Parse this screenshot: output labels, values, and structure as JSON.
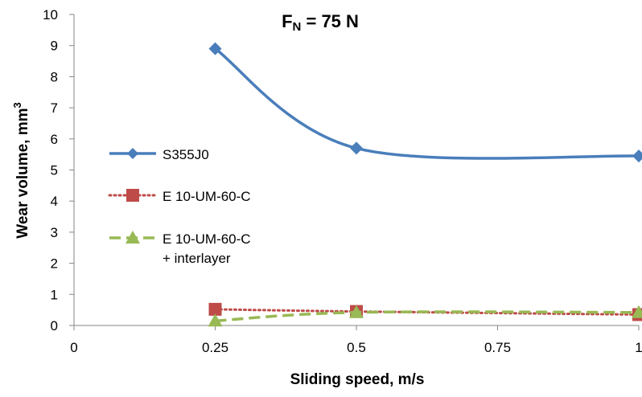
{
  "chart_data": {
    "type": "line",
    "title_main": "F",
    "title_sub": "N",
    "title_rest": " = 75 N",
    "xlabel": "Sliding speed, m/s",
    "ylabel": "Wear volume, mm",
    "ylabel_sup": "3",
    "xlim": [
      0,
      1
    ],
    "ylim": [
      0,
      10
    ],
    "xticks": [
      0,
      0.25,
      0.5,
      0.75,
      1
    ],
    "xtick_labels": [
      "0",
      "0.25",
      "0.5",
      "0.75",
      "1"
    ],
    "yticks": [
      0,
      1,
      2,
      3,
      4,
      5,
      6,
      7,
      8,
      9,
      10
    ],
    "ytick_labels": [
      "0",
      "1",
      "2",
      "3",
      "4",
      "5",
      "6",
      "7",
      "8",
      "9",
      "10"
    ],
    "grid": false,
    "legend_position": "left",
    "series": [
      {
        "name": "S355J0",
        "x": [
          0.25,
          0.5,
          1
        ],
        "values": [
          8.9,
          5.7,
          5.45
        ],
        "color": "#4a7ebb",
        "marker": "diamond",
        "line": "solid"
      },
      {
        "name": "E 10-UM-60-C",
        "x": [
          0.25,
          0.5,
          1
        ],
        "values": [
          0.52,
          0.45,
          0.35
        ],
        "color": "#be4b48",
        "marker": "square",
        "line": "dotted"
      },
      {
        "name": "E 10-UM-60-C",
        "name_line2": "+ interlayer",
        "x": [
          0.25,
          0.5,
          1
        ],
        "values": [
          0.15,
          0.42,
          0.42
        ],
        "color": "#98b954",
        "marker": "triangle",
        "line": "dashed"
      }
    ]
  }
}
